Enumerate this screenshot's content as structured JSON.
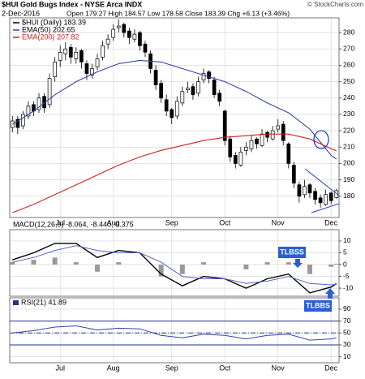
{
  "header": {
    "symbol_line": "$HUI Gold Bugs Index - NYSE Arca INDX",
    "date": "2-Dec-2016",
    "quote": "Open 179.27  High 184.57  Low 178.58  Close 183.39  Chg +6.13 (+3.46%)",
    "watermark": "© StockCharts.com"
  },
  "chart_data": [
    {
      "type": "candlestick",
      "xlim": [
        -0.5,
        61.5
      ],
      "ylim": [
        167,
        289
      ],
      "yticks": [
        180,
        190,
        200,
        210,
        220,
        230,
        240,
        250,
        260,
        270,
        280
      ],
      "grid": true,
      "xticks": [
        {
          "value": 9,
          "label": "Jul"
        },
        {
          "value": 19,
          "label": "Aug"
        },
        {
          "value": 30,
          "label": "Sep"
        },
        {
          "value": 40,
          "label": "Oct"
        },
        {
          "value": 50,
          "label": "Nov"
        },
        {
          "value": 60,
          "label": "Dec"
        }
      ],
      "x": [
        0,
        4,
        8,
        12,
        16,
        20,
        24,
        28,
        32,
        36,
        40,
        44,
        48,
        52,
        56,
        60,
        61
      ],
      "series": [
        {
          "name": "$HUI (Daily) 183.39",
          "color": "#000000",
          "ohlc": [
            [
              222,
              229,
              219,
              226
            ],
            [
              227,
              229,
              218,
              222
            ],
            [
              223,
              232,
              221,
              230
            ],
            [
              229,
              238,
              227,
              235
            ],
            [
              236,
              238,
              229,
              232
            ],
            [
              233,
              243,
              231,
              240
            ],
            [
              241,
              243,
              231,
              234
            ],
            [
              236,
              255,
              234,
              252
            ],
            [
              253,
              265,
              250,
              262
            ],
            [
              263,
              272,
              259,
              268
            ],
            [
              267,
              274,
              263,
              270
            ],
            [
              271,
              273,
              261,
              265
            ],
            [
              264,
              271,
              261,
              268
            ],
            [
              269,
              270,
              258,
              262
            ],
            [
              261,
              263,
              251,
              255
            ],
            [
              254,
              261,
              252,
              258
            ],
            [
              259,
              267,
              257,
              264
            ],
            [
              265,
              275,
              263,
              272
            ],
            [
              273,
              279,
              270,
              276
            ],
            [
              277,
              285,
              275,
              282
            ],
            [
              283,
              288,
              280,
              284
            ],
            [
              285,
              286,
              277,
              280
            ],
            [
              281,
              283,
              273,
              277
            ],
            [
              276,
              282,
              274,
              279
            ],
            [
              280,
              281,
              269,
              272
            ],
            [
              273,
              275,
              265,
              268
            ],
            [
              267,
              269,
              255,
              258
            ],
            [
              257,
              260,
              245,
              248
            ],
            [
              249,
              251,
              237,
              240
            ],
            [
              239,
              242,
              229,
              232
            ],
            [
              233,
              234,
              224,
              228
            ],
            [
              229,
              241,
              227,
              238
            ],
            [
              237,
              247,
              235,
              244
            ],
            [
              245,
              250,
              243,
              246
            ],
            [
              247,
              249,
              239,
              242
            ],
            [
              243,
              253,
              241,
              250
            ],
            [
              251,
              258,
              249,
              255
            ],
            [
              256,
              257,
              249,
              252
            ],
            [
              251,
              253,
              240,
              242
            ],
            [
              243,
              245,
              235,
              238
            ],
            [
              232,
              233,
              211,
              214
            ],
            [
              215,
              217,
              201,
              204
            ],
            [
              205,
              207,
              197,
              200
            ],
            [
              199,
              210,
              198,
              207
            ],
            [
              208,
              213,
              205,
              210
            ],
            [
              209,
              217,
              207,
              214
            ],
            [
              215,
              216,
              209,
              212
            ],
            [
              211,
              221,
              210,
              218
            ],
            [
              219,
              220,
              213,
              216
            ],
            [
              215,
              223,
              214,
              220
            ],
            [
              221,
              227,
              219,
              223
            ],
            [
              224,
              226,
              211,
              214
            ],
            [
              212,
              213,
              197,
              200
            ],
            [
              199,
              201,
              185,
              188
            ],
            [
              187,
              189,
              176,
              180
            ],
            [
              181,
              190,
              179,
              186
            ],
            [
              187,
              188,
              179,
              182
            ],
            [
              183,
              185,
              175,
              178
            ],
            [
              179,
              181,
              173,
              176
            ],
            [
              175,
              184,
              174,
              181
            ],
            [
              182,
              183,
              175,
              177.26
            ],
            [
              179.27,
              184.57,
              178.58,
              183.39
            ]
          ]
        },
        {
          "name": "EMA(50) 202.65",
          "color": "#3344aa",
          "values": [
            224,
            232,
            242,
            250,
            256,
            261,
            263,
            262,
            258,
            254,
            250,
            244,
            237,
            231,
            221,
            205,
            202.65
          ]
        },
        {
          "name": "EMA(200) 207.82",
          "color": "#cc2222",
          "values": [
            170,
            175,
            181,
            187,
            193,
            199,
            204,
            208,
            211,
            214,
            216,
            217,
            218,
            218,
            215,
            209,
            207.82
          ]
        }
      ]
    },
    {
      "type": "macd",
      "legend": "MACD(12,26,9) -8.064, -8.440, 0.375",
      "xlim": [
        -0.5,
        61.5
      ],
      "ylim": [
        -13.4,
        14.8
      ],
      "yticks": [
        10,
        5,
        0,
        -5,
        -10
      ],
      "grid": true,
      "x": [
        0,
        4,
        8,
        12,
        16,
        20,
        24,
        28,
        32,
        36,
        40,
        44,
        48,
        52,
        56,
        60,
        61
      ],
      "series": [
        {
          "color": "#000000",
          "values": [
            2,
            5,
            9,
            9,
            3,
            6,
            5,
            -4,
            -9,
            -5,
            -6,
            -10,
            -6,
            -4,
            -12,
            -9.5,
            -8.064
          ]
        },
        {
          "color": "#5566cc",
          "values": [
            1,
            3,
            6,
            8,
            6,
            5,
            5,
            1,
            -5,
            -6,
            -6,
            -8,
            -7,
            -5,
            -8,
            -8.6,
            -8.44
          ]
        },
        {
          "color": "#999999",
          "values": [
            1,
            2,
            3,
            1,
            -3,
            1,
            0,
            -5,
            -4,
            1,
            0,
            -2,
            1,
            1,
            -4,
            -0.9,
            0.375
          ]
        }
      ],
      "annotations": [
        "TLBSS",
        "TLBBS"
      ]
    },
    {
      "type": "rsi",
      "legend": "RSI(21) 41.89",
      "xlim": [
        -0.5,
        61.5
      ],
      "ylim": [
        0,
        109
      ],
      "yticks": [
        90,
        70,
        50,
        30,
        10
      ],
      "grid": true,
      "reference_lines": [
        70,
        50,
        30
      ],
      "xticks": [
        {
          "value": 9,
          "label": "Jul"
        },
        {
          "value": 19,
          "label": "Aug"
        },
        {
          "value": 30,
          "label": "Sep"
        },
        {
          "value": 40,
          "label": "Oct"
        },
        {
          "value": 50,
          "label": "Nov"
        },
        {
          "value": 60,
          "label": "Dec"
        }
      ],
      "x": [
        0,
        4,
        8,
        12,
        16,
        20,
        24,
        28,
        32,
        36,
        40,
        44,
        48,
        52,
        56,
        60,
        61
      ],
      "series": [
        {
          "color": "#3344aa",
          "values": [
            50,
            54,
            60,
            62,
            55,
            58,
            57,
            46,
            42,
            48,
            46,
            40,
            46,
            48,
            38,
            40,
            41.89
          ]
        }
      ]
    }
  ]
}
